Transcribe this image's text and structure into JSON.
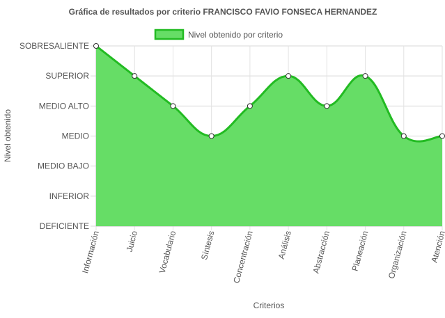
{
  "chart_data": {
    "type": "area",
    "title": "Gráfica de resultados por criterio FRANCISCO FAVIO FONSECA HERNANDEZ",
    "xlabel": "Criterios",
    "ylabel": "Nivel obtenido",
    "categories": [
      "Información",
      "Juicio",
      "Vocabulario",
      "Síntesis",
      "Concentración",
      "Análisis",
      "Abstracción",
      "Planeación",
      "Organización",
      "Atención"
    ],
    "y_levels": [
      "DEFICIENTE",
      "INFERIOR",
      "MEDIO BAJO",
      "MEDIO",
      "MEDIO ALTO",
      "SUPERIOR",
      "SOBRESALIENTE"
    ],
    "ylim": [
      0,
      6
    ],
    "grid": true,
    "legend_position": "top",
    "series": [
      {
        "name": "Nivel obtenido por criterio",
        "values": [
          6,
          5,
          4,
          3,
          4,
          5,
          4,
          5,
          3,
          3
        ],
        "fill_color": "#66dd66",
        "line_color": "#22bb22"
      }
    ]
  }
}
